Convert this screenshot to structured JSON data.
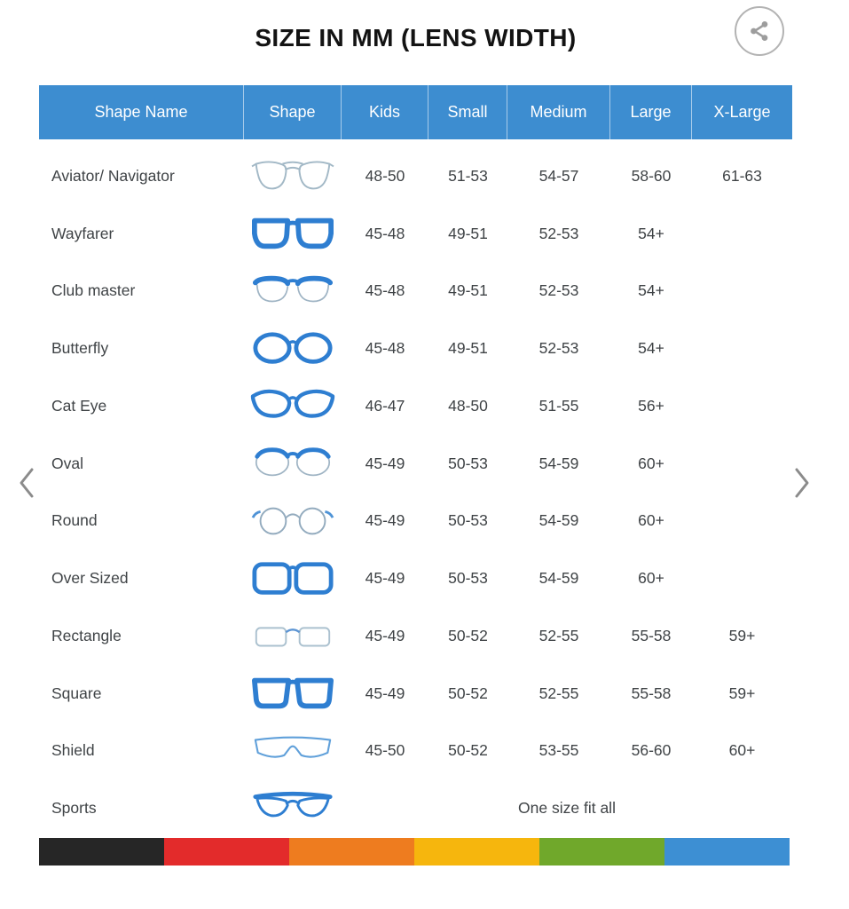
{
  "title": "SIZE IN MM (LENS WIDTH)",
  "header": {
    "share_icon": "share-icon"
  },
  "carousel": {
    "prev_icon": "chevron-left-icon",
    "next_icon": "chevron-right-icon"
  },
  "colors": {
    "header_bg": "#3d8dd0",
    "header_text": "#ffffff",
    "title_text": "#131313",
    "body_text": "#3f4346",
    "icon_bold_blue": "#2e7ed1",
    "icon_thin_outline": "#a2b8c6"
  },
  "table": {
    "columns": [
      "Shape Name",
      "Shape",
      "Kids",
      "Small",
      "Medium",
      "Large",
      "X-Large"
    ],
    "rows": [
      {
        "name": "Aviator/ Navigator",
        "icon": "aviator",
        "kids": "48-50",
        "small": "51-53",
        "medium": "54-57",
        "large": "58-60",
        "xlarge": "61-63"
      },
      {
        "name": "Wayfarer",
        "icon": "wayfarer",
        "kids": "45-48",
        "small": "49-51",
        "medium": "52-53",
        "large": "54+",
        "xlarge": ""
      },
      {
        "name": "Club master",
        "icon": "clubmaster",
        "kids": "45-48",
        "small": "49-51",
        "medium": "52-53",
        "large": "54+",
        "xlarge": ""
      },
      {
        "name": "Butterfly",
        "icon": "butterfly",
        "kids": "45-48",
        "small": "49-51",
        "medium": "52-53",
        "large": "54+",
        "xlarge": ""
      },
      {
        "name": "Cat Eye",
        "icon": "cateye",
        "kids": "46-47",
        "small": "48-50",
        "medium": "51-55",
        "large": "56+",
        "xlarge": ""
      },
      {
        "name": "Oval",
        "icon": "oval",
        "kids": "45-49",
        "small": "50-53",
        "medium": "54-59",
        "large": "60+",
        "xlarge": ""
      },
      {
        "name": "Round",
        "icon": "round",
        "kids": "45-49",
        "small": "50-53",
        "medium": "54-59",
        "large": "60+",
        "xlarge": ""
      },
      {
        "name": "Over Sized",
        "icon": "oversized",
        "kids": "45-49",
        "small": "50-53",
        "medium": "54-59",
        "large": "60+",
        "xlarge": ""
      },
      {
        "name": "Rectangle",
        "icon": "rectangle",
        "kids": "45-49",
        "small": "50-52",
        "medium": "52-55",
        "large": "55-58",
        "xlarge": "59+"
      },
      {
        "name": "Square",
        "icon": "square",
        "kids": "45-49",
        "small": "50-52",
        "medium": "52-55",
        "large": "55-58",
        "xlarge": "59+"
      },
      {
        "name": "Shield",
        "icon": "shield",
        "kids": "45-50",
        "small": "50-52",
        "medium": "53-55",
        "large": "56-60",
        "xlarge": "60+"
      },
      {
        "name": "Sports",
        "icon": "sports",
        "span_text": "One size fit all"
      }
    ]
  },
  "footer_bar": {
    "colors": [
      "#262626",
      "#e32b2b",
      "#ee7c1f",
      "#f6b60d",
      "#70a82b",
      "#3d8fd3"
    ]
  }
}
